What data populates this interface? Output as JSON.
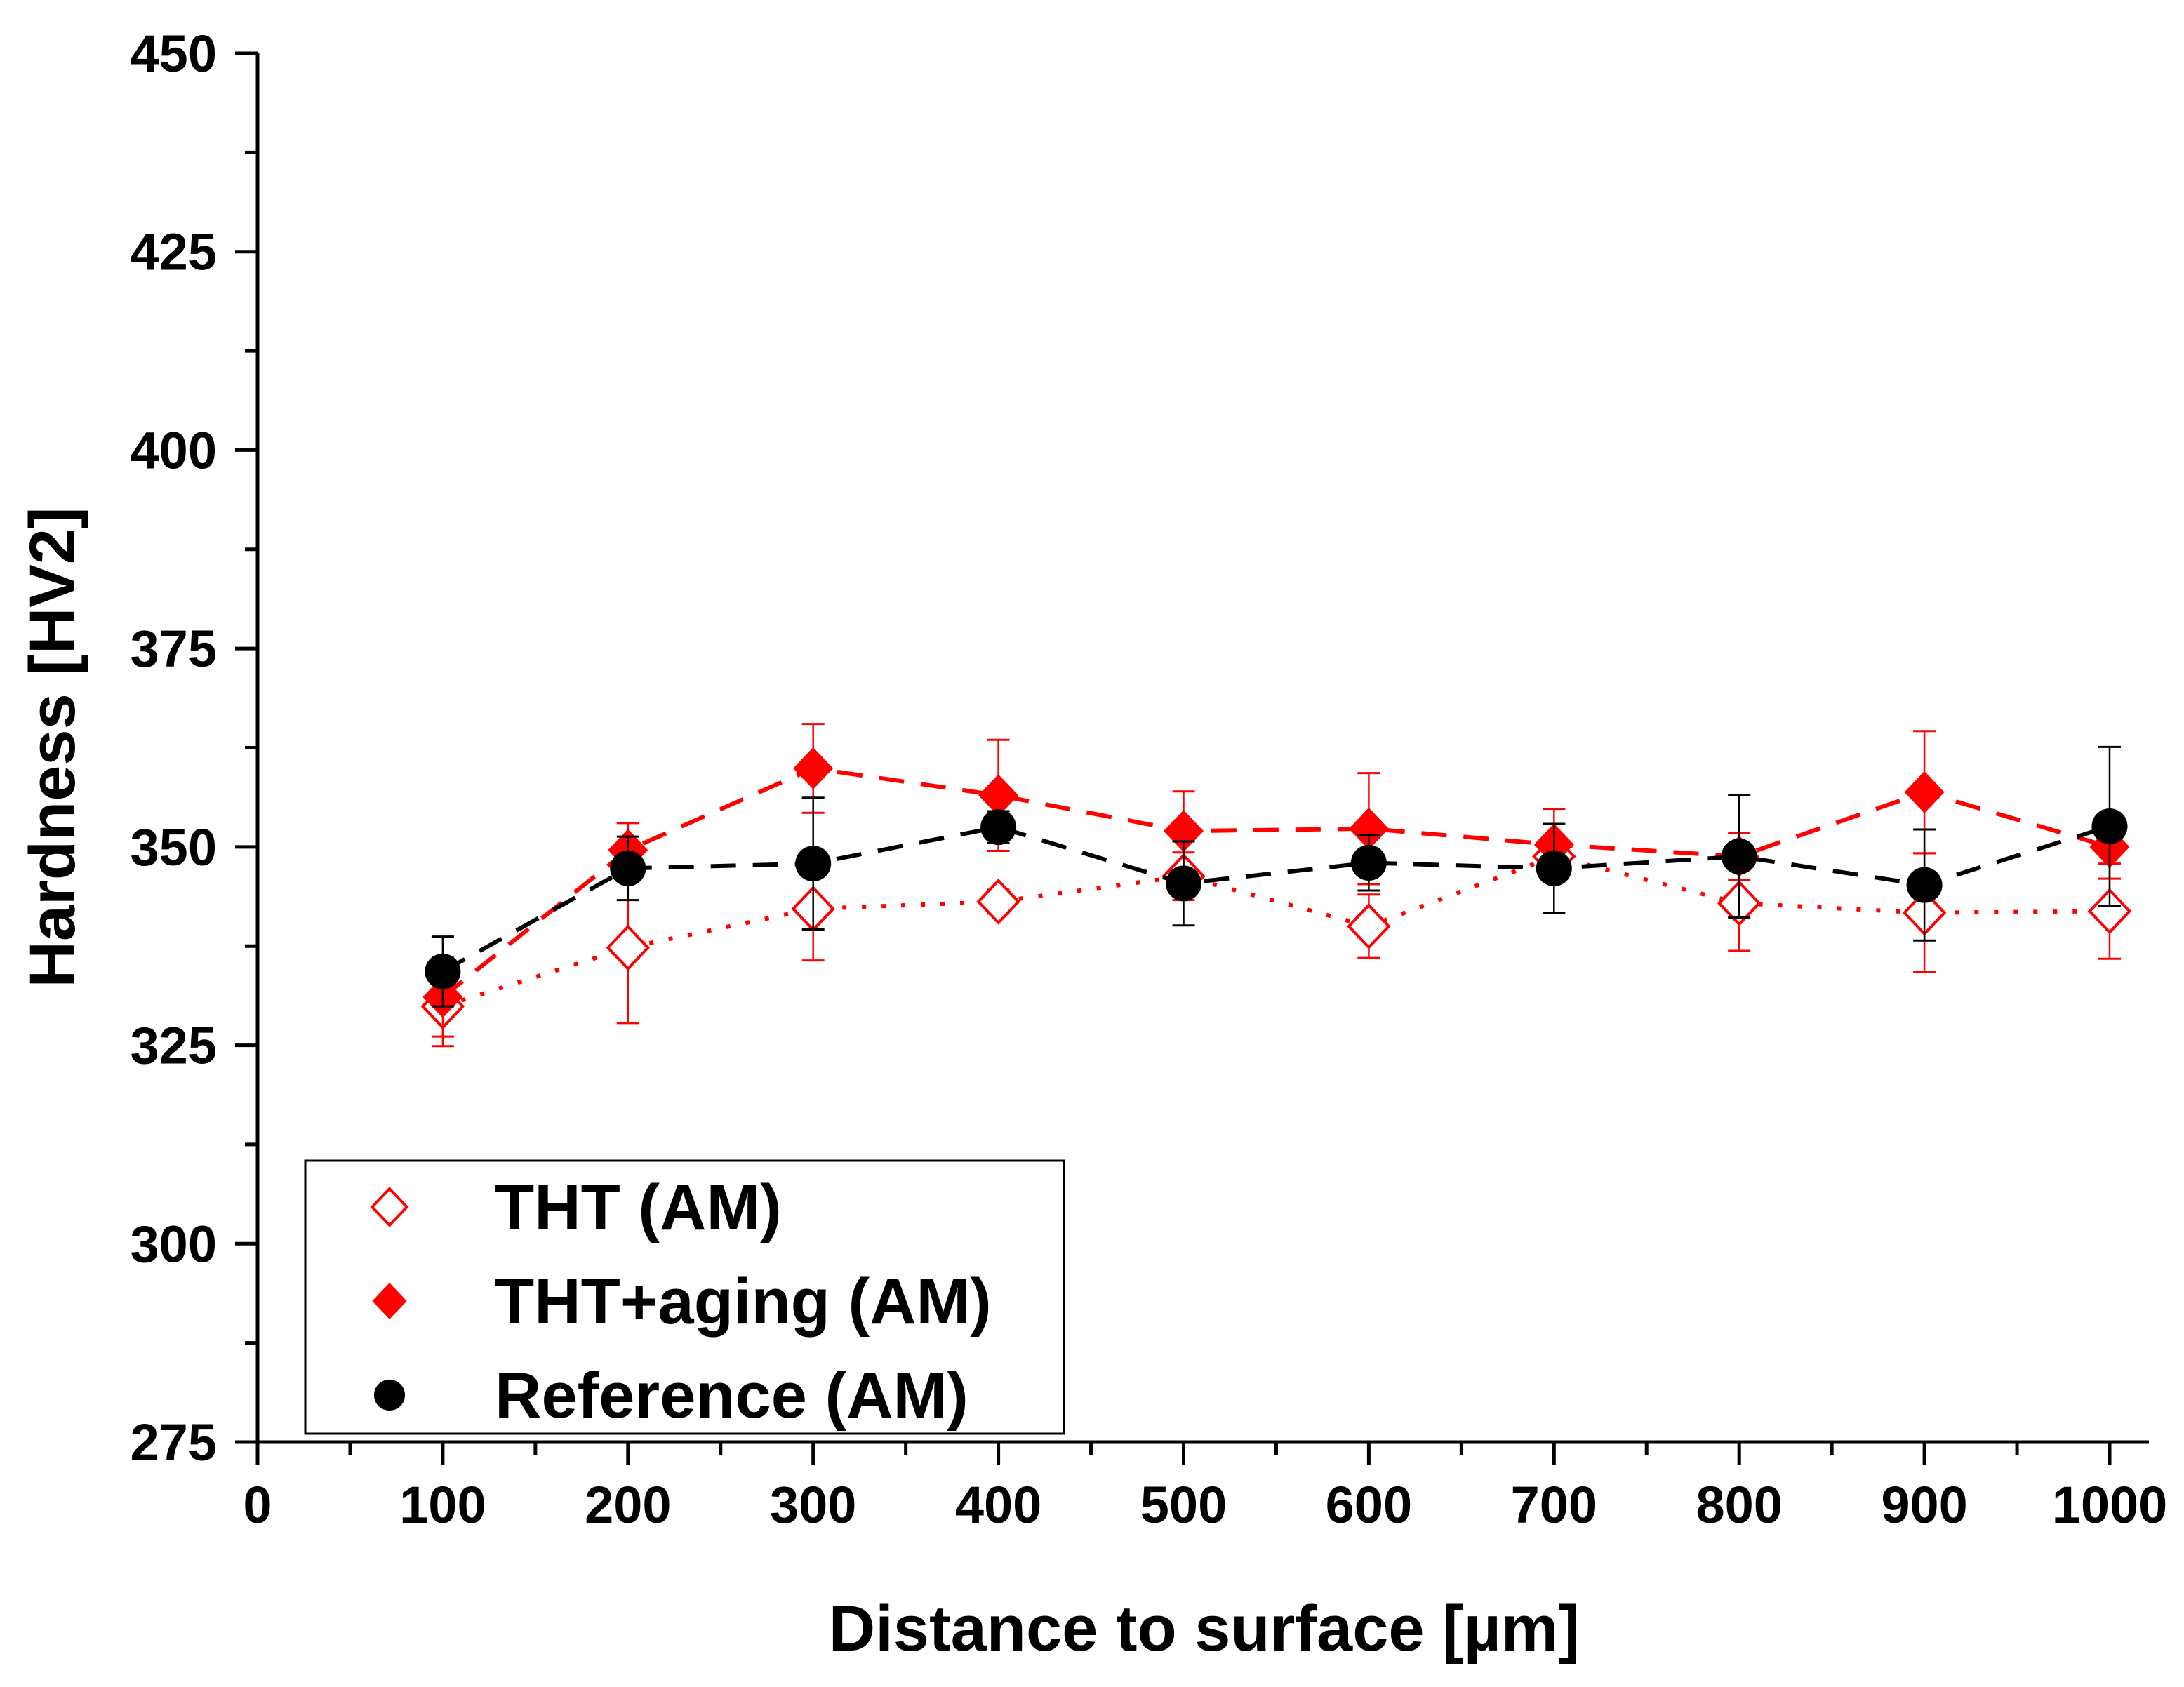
{
  "chart_data": {
    "type": "scatter",
    "xlabel": "Distance to surface [µm]",
    "ylabel": "Hardness [HV2]",
    "xlim": [
      0,
      1000
    ],
    "ylim": [
      275,
      450
    ],
    "xticks": [
      0,
      100,
      200,
      300,
      400,
      500,
      600,
      700,
      800,
      900,
      1000
    ],
    "yticks": [
      275,
      300,
      325,
      350,
      375,
      400,
      425,
      450
    ],
    "grid": false,
    "legend_position": "bottom-left",
    "x": [
      100,
      200,
      300,
      400,
      500,
      600,
      700,
      800,
      900,
      1000
    ],
    "series": [
      {
        "name": "THT (AM)",
        "marker": "open-diamond",
        "line": "dotted",
        "color": "#ff0000",
        "values": [
          329.9,
          337.3,
          342.2,
          343.1,
          346.3,
          340.0,
          348.8,
          342.9,
          341.7,
          341.9
        ],
        "errors": [
          5.0,
          9.5,
          6.5,
          1.5,
          3.0,
          4.0,
          2.0,
          6.0,
          7.5,
          6.0
        ]
      },
      {
        "name": "THT+aging (AM)",
        "marker": "filled-diamond",
        "line": "dashed",
        "color": "#ff0000",
        "values": [
          331.1,
          349.6,
          359.9,
          356.5,
          352.0,
          352.3,
          350.3,
          348.8,
          356.9,
          350.0
        ],
        "errors": [
          5.0,
          3.4,
          5.6,
          7.0,
          5.0,
          7.0,
          4.5,
          3.0,
          7.7,
          4.0
        ]
      },
      {
        "name": "Reference (AM)",
        "marker": "filled-circle",
        "line": "dashed",
        "color": "#000000",
        "values": [
          334.3,
          347.3,
          347.9,
          352.5,
          345.4,
          348.0,
          347.3,
          348.8,
          345.2,
          352.6
        ],
        "errors": [
          4.4,
          4.0,
          8.3,
          2.0,
          5.3,
          3.5,
          5.6,
          7.7,
          7.0,
          10.0
        ]
      }
    ]
  }
}
